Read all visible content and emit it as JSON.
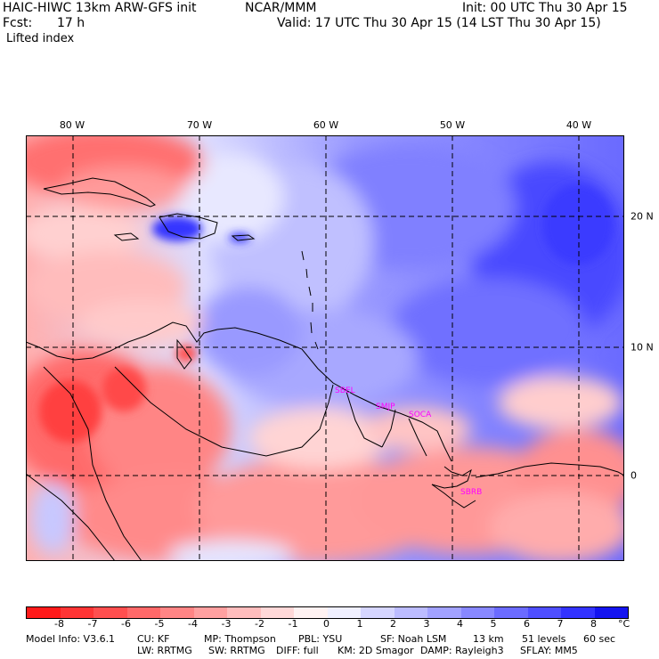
{
  "header": {
    "title": "HAIC-HIWC 13km ARW-GFS init",
    "org": "NCAR/MMM",
    "init": "Init: 00 UTC Thu 30 Apr 15",
    "fcst_label": "Fcst:",
    "fcst_value": "17 h",
    "valid": "Valid: 17 UTC Thu 30 Apr 15 (14 LST Thu 30 Apr 15)",
    "field": "Lifted index"
  },
  "map": {
    "lon_labels": [
      "80 W",
      "70 W",
      "60 W",
      "50 W",
      "40 W"
    ],
    "lat_labels": [
      "20 N",
      "10 N",
      "0"
    ],
    "station_labels": [
      "SBEL",
      "SMJP",
      "SOCA",
      "SBRB"
    ],
    "station_color": "#ff00ff"
  },
  "colorbar": {
    "ticks": [
      "-8",
      "-7",
      "-6",
      "-5",
      "-4",
      "-3",
      "-2",
      "-1",
      "0",
      "1",
      "2",
      "3",
      "4",
      "5",
      "6",
      "7",
      "8"
    ],
    "unit": "°C",
    "colors": [
      "#ff1a1a",
      "#ff3535",
      "#ff4f4f",
      "#ff6969",
      "#ff8585",
      "#ffa0a0",
      "#ffbdbd",
      "#ffd8d8",
      "#fff2f2",
      "#f0f0ff",
      "#d6d6ff",
      "#bcbcff",
      "#a2a2ff",
      "#8888ff",
      "#6b6bff",
      "#4f4fff",
      "#3333ff",
      "#1414f0"
    ]
  },
  "footer": {
    "line1": [
      "Model Info: V3.6.1",
      "CU: KF",
      "MP: Thompson",
      "PBL: YSU",
      "SF: Noah LSM",
      "13 km",
      "51 levels",
      "60 sec"
    ],
    "line2": [
      "LW: RRTMG",
      "SW: RRTMG",
      "DIFF: full",
      "KM: 2D Smagor",
      "DAMP: Rayleigh3",
      "SFLAY: MM5"
    ]
  }
}
